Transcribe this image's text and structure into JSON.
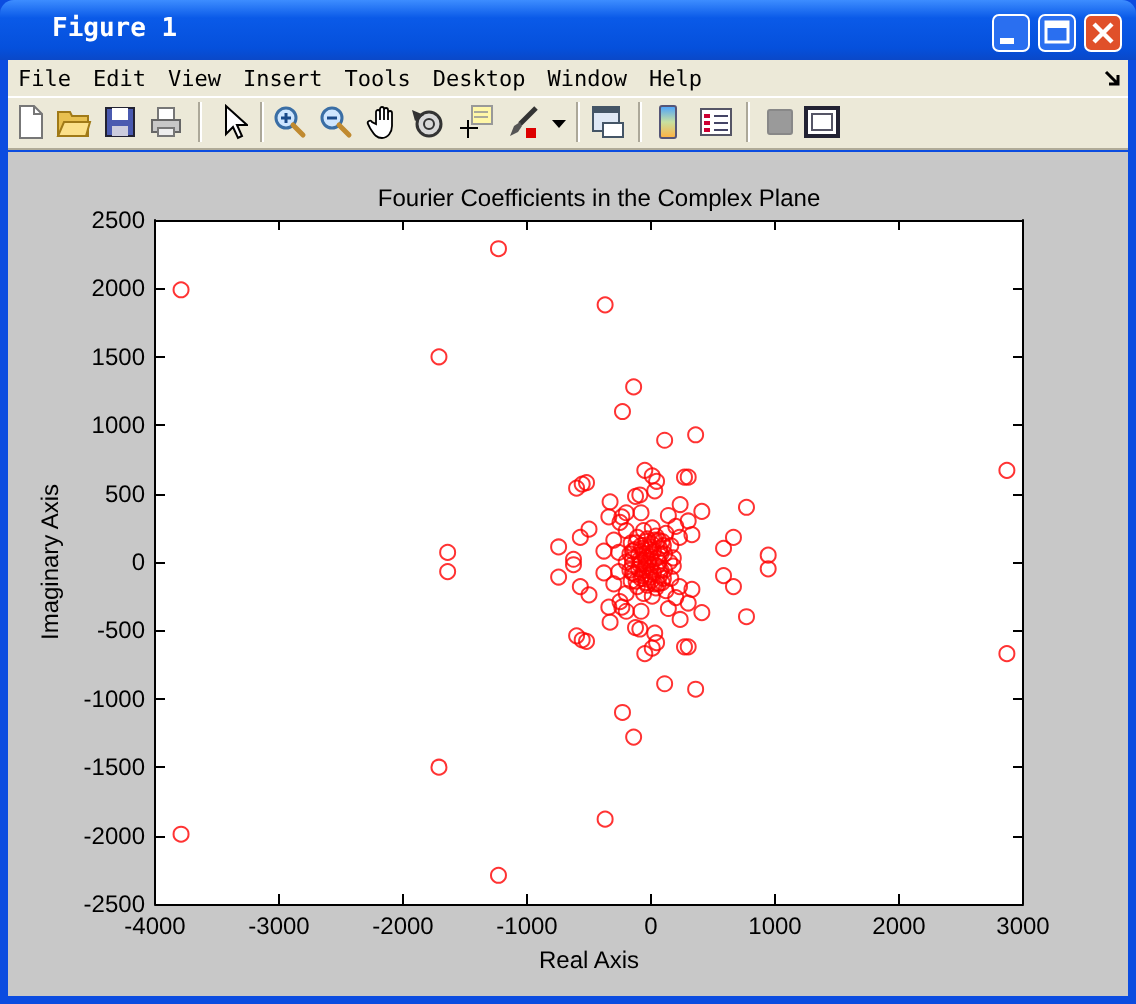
{
  "chart_data": {
    "type": "scatter",
    "title": "Fourier Coefficients in the Complex Plane",
    "xlabel": "Real Axis",
    "ylabel": "Imaginary Axis",
    "annotations": [
      "Figure 1",
      "File",
      "Edit",
      "View",
      "Insert",
      "Tools",
      "Desktop",
      "Window",
      "Help"
    ],
    "x": [
      -3790,
      -3790,
      -1230,
      -1230,
      -1710,
      -1710,
      -1640,
      -1640,
      -370,
      -370,
      -140,
      -140,
      -230,
      -230,
      110,
      110,
      360,
      360,
      2870,
      2870,
      -600,
      -600,
      -555,
      -555,
      -520,
      -520,
      -50,
      -50,
      10,
      10,
      45,
      45,
      30,
      30,
      -90,
      -90,
      -125,
      -125,
      270,
      270,
      300,
      300,
      -330,
      -330,
      235,
      235,
      410,
      410,
      770,
      770,
      -340,
      -340,
      -235,
      -235,
      -500,
      -500,
      -570,
      -570,
      -745,
      -745,
      -625,
      -625,
      665,
      665,
      585,
      585,
      945,
      945,
      -200,
      -200,
      -300,
      -300,
      -260,
      -260,
      200,
      200,
      230,
      230,
      180,
      180,
      -380,
      -380,
      300,
      300,
      -250,
      -250,
      140,
      140,
      -80,
      -80,
      330,
      330,
      -20,
      -20,
      -40,
      -40,
      0,
      0,
      -60,
      -60,
      20,
      20,
      -100,
      -100,
      50,
      50,
      -80,
      -80,
      10,
      10,
      70,
      70,
      -130,
      -130,
      -30,
      -30,
      40,
      40,
      90,
      90,
      -110,
      -110,
      -160,
      -160,
      110,
      110,
      -150,
      -150,
      120,
      120,
      -60,
      -60,
      10,
      10,
      -200,
      -200,
      160,
      160,
      -10,
      -10,
      60,
      60,
      -150,
      -150,
      -120,
      -120,
      -70,
      -70,
      -40,
      -40,
      30,
      30,
      80,
      80,
      100,
      100,
      -90,
      -90,
      0,
      0,
      -170,
      -170,
      -200,
      150,
      60,
      -80
    ],
    "values": [
      1990,
      -1990,
      2290,
      -2290,
      1500,
      -1500,
      70,
      -70,
      1880,
      -1880,
      1280,
      -1280,
      1100,
      -1100,
      890,
      -890,
      930,
      -930,
      670,
      -670,
      540,
      -540,
      570,
      -570,
      580,
      -580,
      670,
      -670,
      630,
      -630,
      590,
      -590,
      520,
      -520,
      490,
      -490,
      480,
      -480,
      620,
      -620,
      620,
      -620,
      440,
      -440,
      420,
      -420,
      370,
      -370,
      400,
      -400,
      330,
      -330,
      330,
      -330,
      240,
      -240,
      180,
      -180,
      110,
      -110,
      20,
      -20,
      180,
      -180,
      100,
      -100,
      50,
      -50,
      360,
      -360,
      160,
      -160,
      70,
      -70,
      260,
      -260,
      180,
      -180,
      30,
      -30,
      80,
      -80,
      300,
      -300,
      290,
      -290,
      340,
      -340,
      360,
      -360,
      200,
      -200,
      10,
      -10,
      30,
      -30,
      40,
      -40,
      60,
      -60,
      80,
      -80,
      50,
      -50,
      30,
      -30,
      120,
      -120,
      130,
      -130,
      100,
      -100,
      90,
      -90,
      170,
      -170,
      190,
      -190,
      150,
      -150,
      180,
      -180,
      140,
      -140,
      60,
      -60,
      20,
      -20,
      210,
      -210,
      230,
      -230,
      250,
      -250,
      230,
      -230,
      120,
      -120,
      90,
      -90,
      160,
      -160,
      80,
      -80,
      140,
      -140,
      100,
      -100,
      150,
      -150,
      160,
      -160,
      60,
      -60,
      120,
      -120,
      20,
      -20,
      110,
      -110,
      60,
      -60,
      0,
      0,
      0,
      0
    ],
    "color": "#ff0000",
    "marker": "circle",
    "xlim": [
      -4000,
      3000
    ],
    "xticks": [
      -4000,
      -3000,
      -2000,
      -1000,
      0,
      1000,
      2000,
      3000
    ],
    "ylim": [
      -2500,
      2500
    ],
    "yticks": [
      -2500,
      -2000,
      -1500,
      -1000,
      -500,
      0,
      500,
      1000,
      1500,
      2000,
      2500
    ],
    "grid": false
  }
}
